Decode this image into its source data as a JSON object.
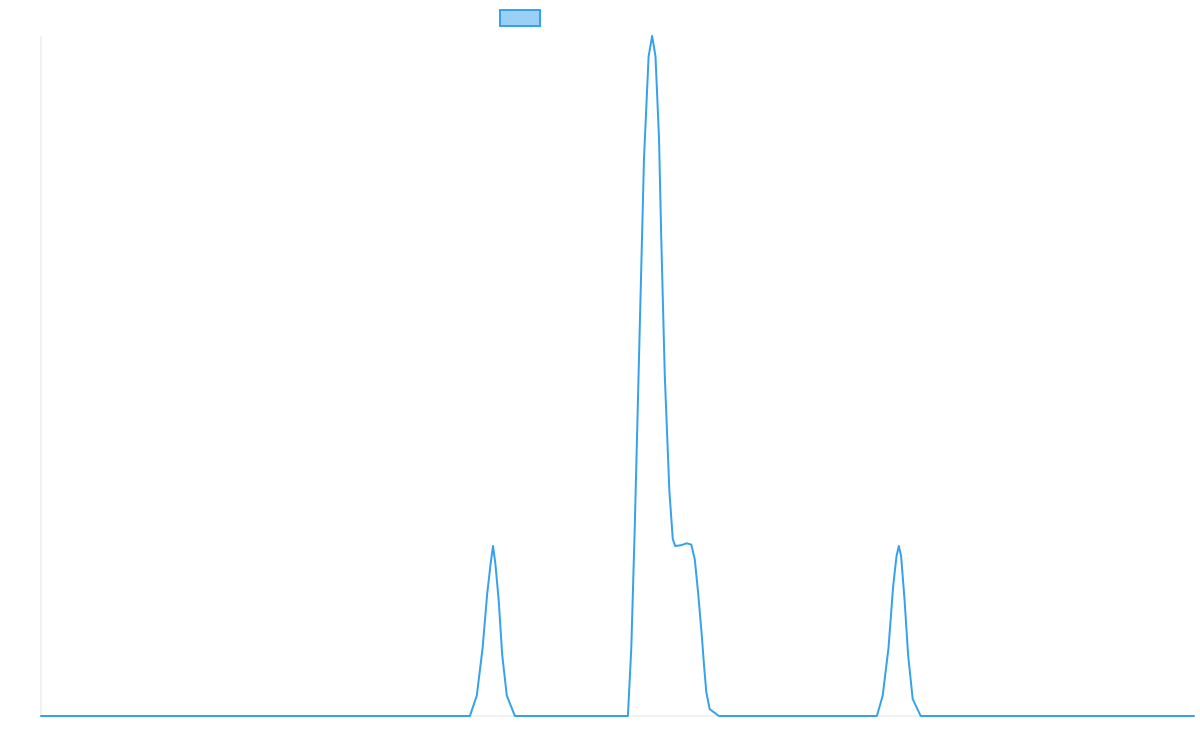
{
  "chart_data": {
    "type": "line",
    "title": "",
    "xlabel": "",
    "ylabel": "",
    "grid": false,
    "legend": {
      "placement": "top-center",
      "entries": [
        {
          "name": "",
          "color": "#36a2eb",
          "fill": "#9ad0f5"
        }
      ]
    },
    "xlim": [
      0,
      1000
    ],
    "ylim": [
      0,
      1
    ],
    "series": [
      {
        "name": "",
        "color": "#36a2eb",
        "points": [
          [
            0,
            0
          ],
          [
            372,
            0
          ],
          [
            378,
            0.03
          ],
          [
            383,
            0.1
          ],
          [
            387,
            0.18
          ],
          [
            390,
            0.225
          ],
          [
            392,
            0.25
          ],
          [
            394,
            0.225
          ],
          [
            397,
            0.17
          ],
          [
            400,
            0.09
          ],
          [
            404,
            0.03
          ],
          [
            411,
            0
          ],
          [
            509,
            0
          ],
          [
            512,
            0.1
          ],
          [
            515,
            0.28
          ],
          [
            519,
            0.55
          ],
          [
            523,
            0.82
          ],
          [
            527,
            0.97
          ],
          [
            530,
            1.0
          ],
          [
            533,
            0.97
          ],
          [
            536,
            0.85
          ],
          [
            538,
            0.7
          ],
          [
            541,
            0.5
          ],
          [
            545,
            0.33
          ],
          [
            548,
            0.26
          ],
          [
            550,
            0.25
          ],
          [
            555,
            0.251
          ],
          [
            560,
            0.254
          ],
          [
            564,
            0.252
          ],
          [
            567,
            0.23
          ],
          [
            570,
            0.18
          ],
          [
            573,
            0.12
          ],
          [
            575,
            0.075
          ],
          [
            577,
            0.035
          ],
          [
            580,
            0.01
          ],
          [
            588,
            0
          ],
          [
            725,
            0
          ],
          [
            730,
            0.03
          ],
          [
            735,
            0.1
          ],
          [
            739,
            0.19
          ],
          [
            742,
            0.235
          ],
          [
            744,
            0.25
          ],
          [
            746,
            0.235
          ],
          [
            749,
            0.17
          ],
          [
            752,
            0.09
          ],
          [
            756,
            0.025
          ],
          [
            763,
            0
          ],
          [
            1000,
            0
          ]
        ]
      }
    ]
  }
}
